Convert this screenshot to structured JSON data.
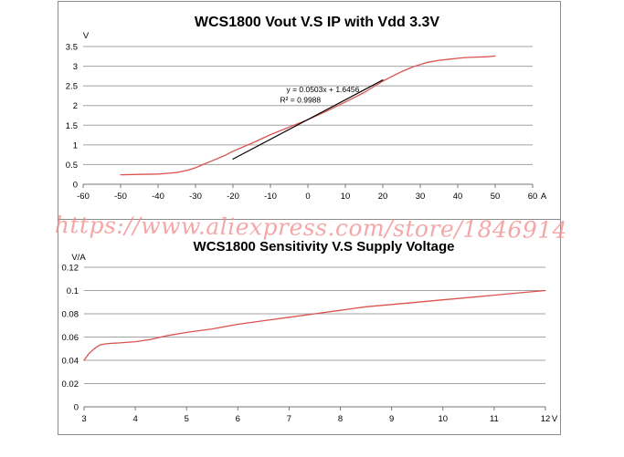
{
  "watermark": "https://www.aliexpress.com/store/1846914",
  "colors": {
    "curve": "#d9534f",
    "fit": "#000000",
    "grid": "#a0a0a0",
    "axis": "#777777",
    "text": "#000000"
  },
  "chart_data": [
    {
      "type": "line",
      "title": "WCS1800 Vout V.S IP with Vdd 3.3V",
      "xlabel": "A",
      "ylabel": "V",
      "xlim": [
        -60,
        60
      ],
      "ylim": [
        0,
        3.5
      ],
      "xticks": [
        "-60",
        "-50",
        "-40",
        "-30",
        "-20",
        "-10",
        "0",
        "10",
        "20",
        "30",
        "40",
        "50",
        "60"
      ],
      "yticks": [
        "0",
        "0.5",
        "1",
        "1.5",
        "2",
        "2.5",
        "3",
        "3.5"
      ],
      "grid": true,
      "series": [
        {
          "type": "line",
          "x": [
            -50,
            -45,
            -40,
            -37,
            -35,
            -32,
            -30,
            -28,
            -25,
            -22,
            -20,
            -15,
            -10,
            -5,
            0,
            5,
            10,
            15,
            20,
            22,
            25,
            28,
            30,
            32,
            35,
            38,
            40,
            42,
            45,
            48,
            50
          ],
          "values": [
            0.24,
            0.25,
            0.26,
            0.28,
            0.3,
            0.36,
            0.42,
            0.5,
            0.62,
            0.74,
            0.84,
            1.04,
            1.26,
            1.45,
            1.64,
            1.86,
            2.09,
            2.33,
            2.62,
            2.72,
            2.86,
            2.98,
            3.04,
            3.1,
            3.15,
            3.18,
            3.2,
            3.22,
            3.23,
            3.24,
            3.26
          ]
        },
        {
          "type": "linear-fit",
          "x": [
            -20,
            20
          ],
          "values": [
            0.64,
            2.65
          ]
        }
      ],
      "annotation": {
        "equation": "y = 0.0503x + 1.6456",
        "r2": "R² = 0.9988"
      }
    },
    {
      "type": "line",
      "title": "WCS1800 Sensitivity V.S Supply Voltage",
      "xlabel": "V",
      "ylabel": "V/A",
      "xlim": [
        3,
        12
      ],
      "ylim": [
        0,
        0.12
      ],
      "xticks": [
        "3",
        "4",
        "5",
        "6",
        "7",
        "8",
        "9",
        "10",
        "11",
        "12"
      ],
      "yticks": [
        "0",
        "0.02",
        "0.04",
        "0.06",
        "0.08",
        "0.1",
        "0.12"
      ],
      "grid": true,
      "series": [
        {
          "type": "line",
          "x": [
            3.0,
            3.1,
            3.2,
            3.3,
            3.4,
            3.5,
            3.7,
            4.0,
            4.3,
            4.6,
            5.0,
            5.5,
            6.0,
            6.5,
            7.0,
            7.5,
            8.0,
            8.5,
            9.0,
            9.5,
            10.0,
            10.5,
            11.0,
            11.5,
            12.0
          ],
          "values": [
            0.04,
            0.046,
            0.05,
            0.053,
            0.054,
            0.0545,
            0.055,
            0.056,
            0.058,
            0.061,
            0.064,
            0.067,
            0.071,
            0.074,
            0.077,
            0.08,
            0.083,
            0.086,
            0.088,
            0.09,
            0.092,
            0.094,
            0.096,
            0.098,
            0.1
          ]
        }
      ]
    }
  ]
}
